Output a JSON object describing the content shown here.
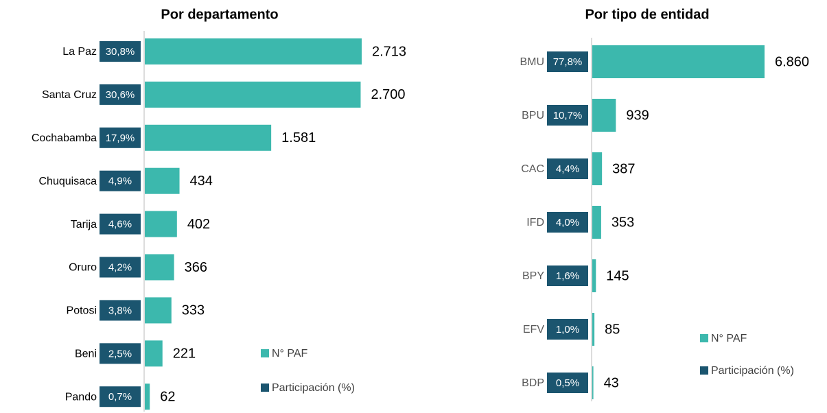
{
  "chart_data": [
    {
      "type": "bar",
      "orientation": "horizontal",
      "title": "Por departamento",
      "categories": [
        "La Paz",
        "Santa Cruz",
        "Cochabamba",
        "Chuquisaca",
        "Tarija",
        "Oruro",
        "Potosi",
        "Beni",
        "Pando"
      ],
      "series": [
        {
          "name": "N° PAF",
          "color": "#3cb8ad",
          "values": [
            2713,
            2700,
            1581,
            434,
            402,
            366,
            333,
            221,
            62
          ],
          "value_labels": [
            "2.713",
            "2.700",
            "1.581",
            "434",
            "402",
            "366",
            "333",
            "221",
            "62"
          ]
        },
        {
          "name": "Participación (%)",
          "color": "#1b556f",
          "values": [
            30.8,
            30.6,
            17.9,
            4.9,
            4.6,
            4.2,
            3.8,
            2.5,
            0.7
          ],
          "value_labels": [
            "30,8%",
            "30,6%",
            "17,9%",
            "4,9%",
            "4,6%",
            "4,2%",
            "3,8%",
            "2,5%",
            "0,7%"
          ]
        }
      ],
      "legend": "lower right"
    },
    {
      "type": "bar",
      "orientation": "horizontal",
      "title": "Por tipo de entidad",
      "categories": [
        "BMU",
        "BPU",
        "CAC",
        "IFD",
        "BPY",
        "EFV",
        "BDP"
      ],
      "series": [
        {
          "name": "N° PAF",
          "color": "#3cb8ad",
          "values": [
            6860,
            939,
            387,
            353,
            145,
            85,
            43
          ],
          "value_labels": [
            "6.860",
            "939",
            "387",
            "353",
            "145",
            "85",
            "43"
          ]
        },
        {
          "name": "Participación (%)",
          "color": "#1b556f",
          "values": [
            77.8,
            10.7,
            4.4,
            4.0,
            1.6,
            1.0,
            0.5
          ],
          "value_labels": [
            "77,8%",
            "10,7%",
            "4,4%",
            "4,0%",
            "1,6%",
            "1,0%",
            "0,5%"
          ]
        }
      ],
      "legend": "lower right"
    }
  ]
}
